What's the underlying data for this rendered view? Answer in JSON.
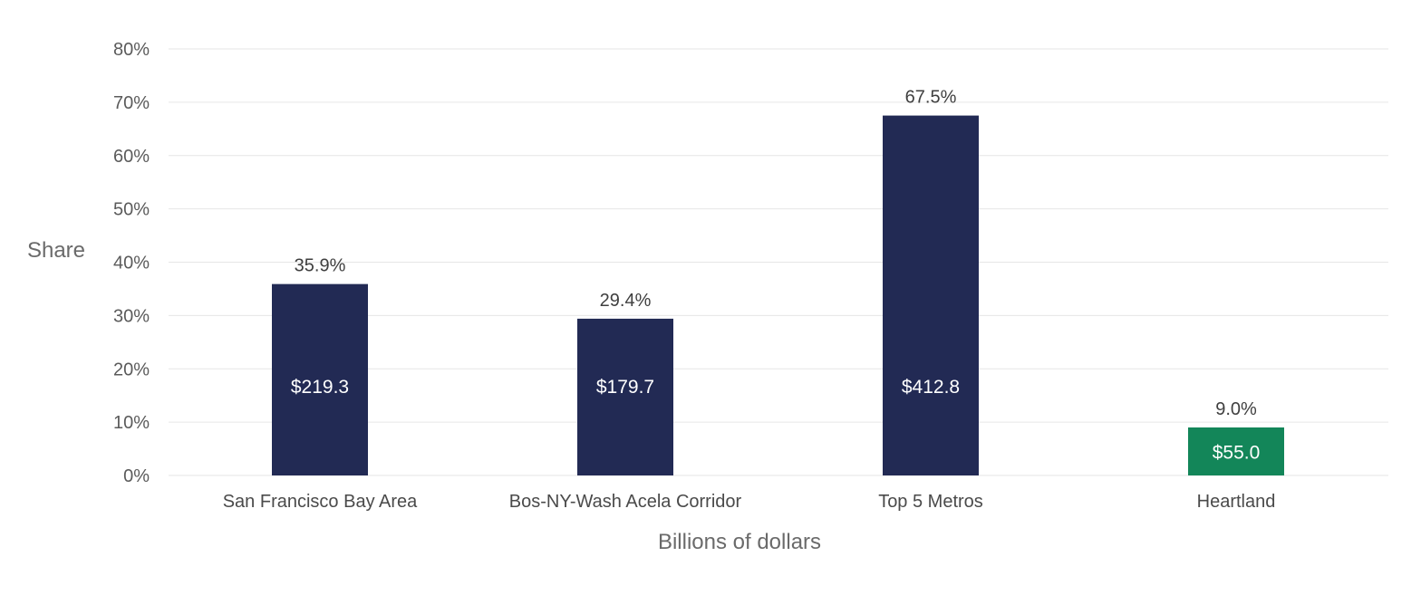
{
  "chart_data": {
    "type": "bar",
    "title": "",
    "xlabel": "Billions of dollars",
    "ylabel": "Share",
    "ylim": [
      0,
      80
    ],
    "y_ticks": [
      "0%",
      "10%",
      "20%",
      "30%",
      "40%",
      "50%",
      "60%",
      "70%",
      "80%"
    ],
    "y_tick_values": [
      0,
      10,
      20,
      30,
      40,
      50,
      60,
      70,
      80
    ],
    "grid": true,
    "categories": [
      "San Francisco Bay Area",
      "Bos-NY-Wash Acela Corridor",
      "Top 5 Metros",
      "Heartland"
    ],
    "values": [
      35.9,
      29.4,
      67.5,
      9.0
    ],
    "value_labels": [
      "35.9%",
      "29.4%",
      "67.5%",
      "9.0%"
    ],
    "dollar_labels": [
      "$219.3",
      "$179.7",
      "$412.8",
      "$55.0"
    ],
    "colors": [
      "#222a54",
      "#222a54",
      "#222a54",
      "#138659"
    ]
  }
}
